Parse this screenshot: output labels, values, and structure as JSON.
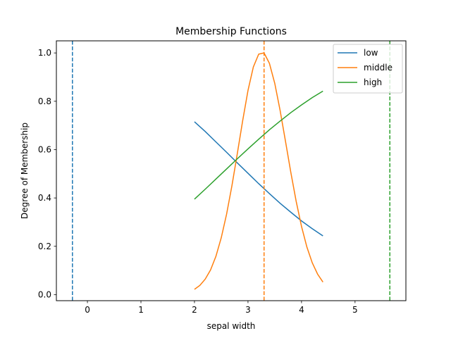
{
  "chart_data": {
    "type": "line",
    "title": "Membership Functions",
    "xlabel": "sepal width",
    "ylabel": "Degree of Membership",
    "xlim": [
      -0.58,
      5.95
    ],
    "ylim": [
      -0.025,
      1.05
    ],
    "xticks": [
      0,
      1,
      2,
      3,
      4,
      5
    ],
    "yticks": [
      0.0,
      0.2,
      0.4,
      0.6,
      0.8,
      1.0
    ],
    "grid": false,
    "legend_position": "top-right",
    "series": [
      {
        "name": "low",
        "color": "#1f77b4",
        "x": [
          2.0,
          2.2,
          2.4,
          2.6,
          2.8,
          3.0,
          3.2,
          3.4,
          3.6,
          3.8,
          4.0,
          4.2,
          4.4
        ],
        "y": [
          0.715,
          0.675,
          0.632,
          0.589,
          0.545,
          0.502,
          0.459,
          0.418,
          0.378,
          0.341,
          0.305,
          0.273,
          0.243
        ]
      },
      {
        "name": "middle",
        "color": "#ff7f0e",
        "x": [
          2.0,
          2.1,
          2.2,
          2.3,
          2.4,
          2.5,
          2.6,
          2.7,
          2.8,
          2.9,
          3.0,
          3.1,
          3.2,
          3.3,
          3.4,
          3.5,
          3.6,
          3.7,
          3.8,
          3.9,
          4.0,
          4.1,
          4.2,
          4.3,
          4.4
        ],
        "y": [
          0.022,
          0.038,
          0.064,
          0.102,
          0.158,
          0.235,
          0.333,
          0.451,
          0.583,
          0.719,
          0.845,
          0.942,
          0.995,
          1.0,
          0.957,
          0.874,
          0.762,
          0.635,
          0.506,
          0.386,
          0.282,
          0.197,
          0.132,
          0.085,
          0.052
        ]
      },
      {
        "name": "high",
        "color": "#2ca02c",
        "x": [
          2.0,
          2.2,
          2.4,
          2.6,
          2.8,
          3.0,
          3.2,
          3.4,
          3.6,
          3.8,
          4.0,
          4.2,
          4.4
        ],
        "y": [
          0.395,
          0.436,
          0.478,
          0.52,
          0.562,
          0.603,
          0.643,
          0.682,
          0.718,
          0.753,
          0.785,
          0.815,
          0.842
        ]
      }
    ],
    "vlines": [
      {
        "x": -0.28,
        "color": "#1f77b4",
        "style": "dashed"
      },
      {
        "x": 3.3,
        "color": "#ff7f0e",
        "style": "dashed"
      },
      {
        "x": 5.65,
        "color": "#2ca02c",
        "style": "dashed"
      }
    ]
  }
}
